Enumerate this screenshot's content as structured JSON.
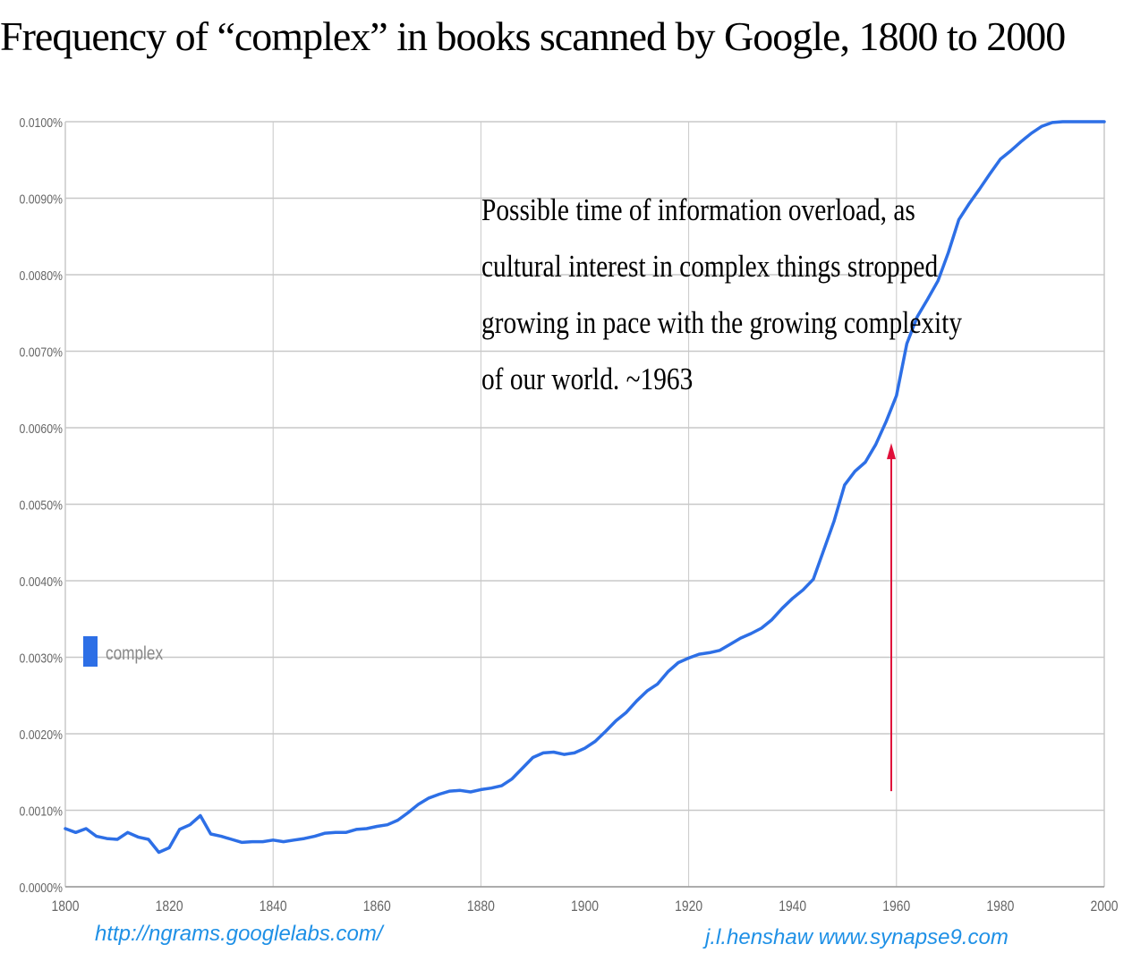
{
  "title": "Frequency of  “complex” in books scanned by Google, 1800 to 2000",
  "source_url": "http://ngrams.googlelabs.com/",
  "credit": "j.l.henshaw   www.synapse9.com",
  "colors": {
    "series": "#2d6fe6",
    "arrow": "#e0103a",
    "grid": "#c8c8c8",
    "axis_text": "#666666"
  },
  "annotation": {
    "lines": [
      "Possible time of information overload, as",
      "cultural interest in complex things stropped",
      "growing in pace with the growing complexity",
      "of our world.   ~1963"
    ],
    "arrow_year": 1959,
    "arrow_from_value": 0.00125,
    "arrow_to_value": 0.0058
  },
  "chart_data": {
    "type": "line",
    "xlim": [
      1800,
      2000
    ],
    "ylim": [
      0,
      0.0001
    ],
    "x_ticks": [
      1800,
      1820,
      1840,
      1860,
      1880,
      1900,
      1920,
      1940,
      1960,
      1980,
      2000
    ],
    "x_vgrid": [
      1840,
      1880,
      1920,
      1960
    ],
    "y_ticks": [
      {
        "value": 0.0,
        "label": "0.0000%"
      },
      {
        "value": 1e-05,
        "label": "0.0010%"
      },
      {
        "value": 2e-05,
        "label": "0.0020%"
      },
      {
        "value": 3e-05,
        "label": "0.0030%"
      },
      {
        "value": 4e-05,
        "label": "0.0040%"
      },
      {
        "value": 5e-05,
        "label": "0.0050%"
      },
      {
        "value": 6e-05,
        "label": "0.0060%"
      },
      {
        "value": 7e-05,
        "label": "0.0070%"
      },
      {
        "value": 8e-05,
        "label": "0.0080%"
      },
      {
        "value": 9e-05,
        "label": "0.0090%"
      },
      {
        "value": 0.0001,
        "label": "0.0100%"
      }
    ],
    "legend": {
      "position": "left-middle",
      "label": "complex"
    },
    "series": [
      {
        "name": "complex",
        "x": [
          1800,
          1802,
          1804,
          1806,
          1808,
          1810,
          1812,
          1814,
          1816,
          1818,
          1820,
          1822,
          1824,
          1826,
          1828,
          1830,
          1832,
          1834,
          1836,
          1838,
          1840,
          1842,
          1844,
          1846,
          1848,
          1850,
          1852,
          1854,
          1856,
          1858,
          1860,
          1862,
          1864,
          1866,
          1868,
          1870,
          1872,
          1874,
          1876,
          1878,
          1880,
          1882,
          1884,
          1886,
          1888,
          1890,
          1892,
          1894,
          1896,
          1898,
          1900,
          1902,
          1904,
          1906,
          1908,
          1910,
          1912,
          1914,
          1916,
          1918,
          1920,
          1922,
          1924,
          1926,
          1928,
          1930,
          1932,
          1934,
          1936,
          1938,
          1940,
          1942,
          1944,
          1946,
          1948,
          1950,
          1952,
          1954,
          1956,
          1958,
          1960,
          1962,
          1964,
          1966,
          1968,
          1970,
          1972,
          1974,
          1976,
          1978,
          1980,
          1982,
          1984,
          1986,
          1988,
          1990,
          1992,
          1994,
          1996,
          1998,
          2000
        ],
        "y": [
          7.6e-06,
          7.1e-06,
          7.6e-06,
          6.6e-06,
          6.3e-06,
          6.2e-06,
          7.1e-06,
          6.5e-06,
          6.2e-06,
          4.5e-06,
          5.1e-06,
          7.5e-06,
          8.1e-06,
          9.3e-06,
          6.9e-06,
          6.6e-06,
          6.2e-06,
          5.8e-06,
          5.9e-06,
          5.9e-06,
          6.1e-06,
          5.9e-06,
          6.1e-06,
          6.3e-06,
          6.6e-06,
          7e-06,
          7.1e-06,
          7.1e-06,
          7.5e-06,
          7.6e-06,
          7.9e-06,
          8.1e-06,
          8.7e-06,
          9.7e-06,
          1.08e-05,
          1.16e-05,
          1.21e-05,
          1.25e-05,
          1.26e-05,
          1.24e-05,
          1.27e-05,
          1.29e-05,
          1.32e-05,
          1.41e-05,
          1.55e-05,
          1.69e-05,
          1.75e-05,
          1.76e-05,
          1.73e-05,
          1.75e-05,
          1.81e-05,
          1.9e-05,
          2.03e-05,
          2.17e-05,
          2.28e-05,
          2.43e-05,
          2.56e-05,
          2.65e-05,
          2.81e-05,
          2.93e-05,
          2.99e-05,
          3.04e-05,
          3.06e-05,
          3.09e-05,
          3.17e-05,
          3.25e-05,
          3.31e-05,
          3.38e-05,
          3.49e-05,
          3.64e-05,
          3.77e-05,
          3.88e-05,
          4.02e-05,
          4.4e-05,
          4.78e-05,
          5.25e-05,
          5.43e-05,
          5.55e-05,
          5.78e-05,
          6.08e-05,
          6.42e-05,
          7.1e-05,
          7.45e-05,
          7.68e-05,
          7.92e-05,
          8.29e-05,
          8.72e-05,
          8.93e-05,
          9.12e-05,
          9.32e-05,
          9.51e-05,
          9.62e-05,
          9.74e-05,
          9.85e-05,
          9.94e-05,
          9.99e-05,
          0.0001,
          0.0001,
          0.0001,
          0.0001,
          0.0001
        ]
      }
    ]
  }
}
